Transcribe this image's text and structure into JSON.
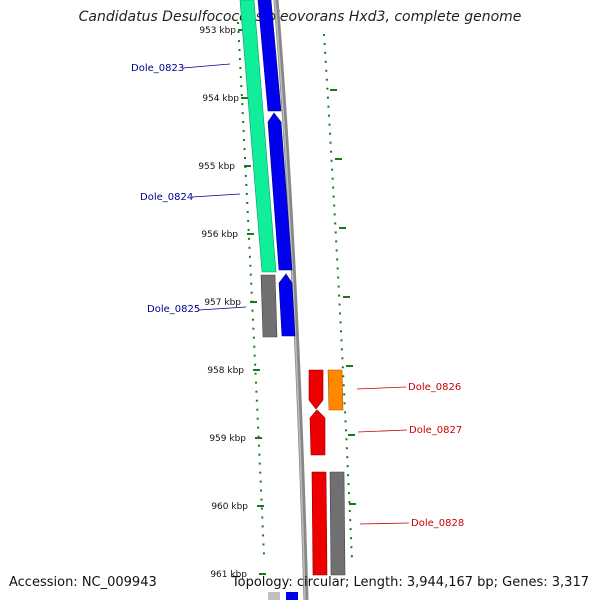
{
  "title": "Candidatus Desulfococcus oleovorans Hxd3, complete genome",
  "accession_text": "Accession: NC_009943",
  "topology_text": "Topology: circular; Length: 3,944,167 bp; Genes: 3,317",
  "colors": {
    "backbone": "#888888",
    "tick": "#1a7a1a",
    "label_blue": "#00008b",
    "label_red": "#cc0000",
    "cds_blue": "#0000ee",
    "cds_green": "#11ee99",
    "cds_gray": "#707070",
    "cds_red": "#ee0000",
    "cds_orange": "#ff8800"
  },
  "ticks": [
    {
      "label": "953 kbp"
    },
    {
      "label": "954 kbp"
    },
    {
      "label": "955 kbp"
    },
    {
      "label": "956 kbp"
    },
    {
      "label": "957 kbp"
    },
    {
      "label": "958 kbp"
    },
    {
      "label": "959 kbp"
    },
    {
      "label": "960 kbp"
    },
    {
      "label": "961 kbp"
    }
  ],
  "genes": [
    {
      "label": "Dole_0823",
      "color": "blue"
    },
    {
      "label": "Dole_0824",
      "color": "blue"
    },
    {
      "label": "Dole_0825",
      "color": "blue"
    },
    {
      "label": "Dole_0826",
      "color": "red"
    },
    {
      "label": "Dole_0827",
      "color": "red"
    },
    {
      "label": "Dole_0828",
      "color": "red"
    }
  ]
}
